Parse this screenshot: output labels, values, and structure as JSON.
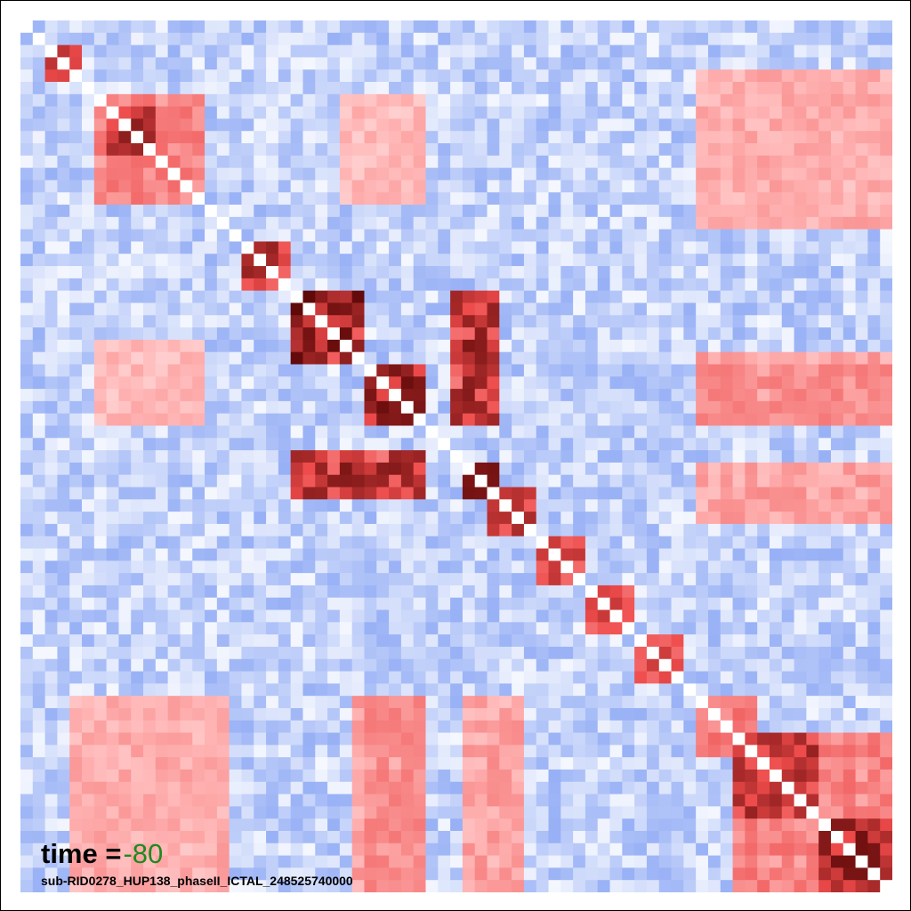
{
  "chart_data": {
    "type": "heatmap",
    "n": 71,
    "colorscale": {
      "low": "#4f77ee",
      "mid": "#ffffff",
      "high": "#4d0000",
      "stops": [
        "#4f77ee",
        "#a8bdf7",
        "#ffffff",
        "#ffb4b4",
        "#ee4a4a",
        "#4d0000"
      ]
    },
    "diagonal_color": "#ffffff",
    "blocks": [
      {
        "start": 2,
        "end": 4,
        "strength": 0.85
      },
      {
        "start": 6,
        "end": 14,
        "strength": 0.55
      },
      {
        "start": 7,
        "end": 10,
        "strength": 0.9
      },
      {
        "start": 18,
        "end": 21,
        "strength": 0.95
      },
      {
        "start": 22,
        "end": 27,
        "strength": 0.98
      },
      {
        "start": 28,
        "end": 32,
        "strength": 0.95
      },
      {
        "start": 36,
        "end": 38,
        "strength": 0.95
      },
      {
        "start": 38,
        "end": 41,
        "strength": 0.85
      },
      {
        "start": 42,
        "end": 45,
        "strength": 0.75
      },
      {
        "start": 46,
        "end": 49,
        "strength": 0.75
      },
      {
        "start": 50,
        "end": 53,
        "strength": 0.75
      },
      {
        "start": 55,
        "end": 59,
        "strength": 0.6
      },
      {
        "start": 58,
        "end": 64,
        "strength": 0.85
      },
      {
        "start": 65,
        "end": 70,
        "strength": 0.92
      }
    ],
    "cross_blocks": [
      {
        "rows": [
          22,
          27
        ],
        "cols": [
          35,
          38
        ],
        "strength": 0.9
      },
      {
        "rows": [
          28,
          32
        ],
        "cols": [
          35,
          38
        ],
        "strength": 0.85
      },
      {
        "rows": [
          36,
          38
        ],
        "cols": [
          22,
          32
        ],
        "strength": 0.9
      },
      {
        "rows": [
          6,
          14
        ],
        "cols": [
          26,
          32
        ],
        "strength": 0.35
      },
      {
        "rows": [
          28,
          32
        ],
        "cols": [
          55,
          70
        ],
        "strength": 0.5
      },
      {
        "rows": [
          55,
          70
        ],
        "cols": [
          28,
          32
        ],
        "strength": 0.5
      },
      {
        "rows": [
          55,
          70
        ],
        "cols": [
          4,
          16
        ],
        "strength": 0.35
      },
      {
        "rows": [
          55,
          70
        ],
        "cols": [
          27,
          32
        ],
        "strength": 0.45
      },
      {
        "rows": [
          58,
          70
        ],
        "cols": [
          58,
          70
        ],
        "strength": 0.55
      },
      {
        "rows": [
          36,
          40
        ],
        "cols": [
          55,
          70
        ],
        "strength": 0.45
      },
      {
        "rows": [
          4,
          16
        ],
        "cols": [
          55,
          70
        ],
        "strength": 0.4
      }
    ],
    "seed": 278
  },
  "annotation": {
    "time_label": "time =",
    "time_value": "-80",
    "subtitle": "sub-RID0278_HUP138_phaseII_ICTAL_248525740000"
  }
}
